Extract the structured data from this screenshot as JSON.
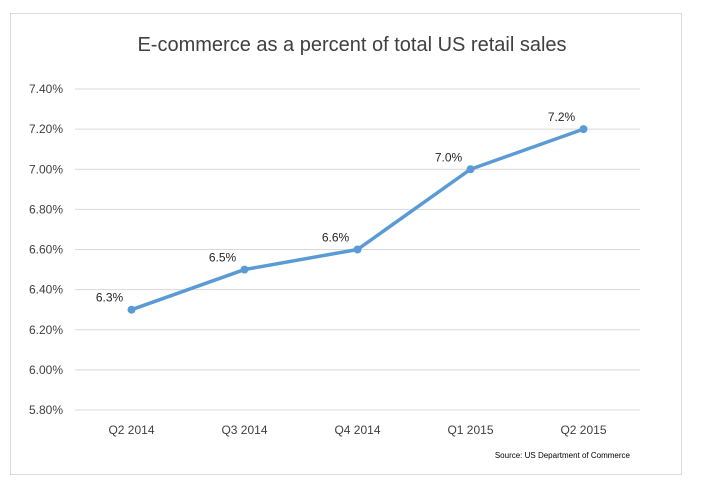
{
  "chart_data": {
    "type": "line",
    "title": "E-commerce as a percent of total US retail sales",
    "categories": [
      "Q2 2014",
      "Q3 2014",
      "Q4 2014",
      "Q1 2015",
      "Q2 2015"
    ],
    "series": [
      {
        "values": [
          6.3,
          6.5,
          6.6,
          7.0,
          7.2
        ],
        "color": "#5b9bd5"
      }
    ],
    "data_labels": [
      "6.3%",
      "6.5%",
      "6.6%",
      "7.0%",
      "7.2%"
    ],
    "y_ticks": [
      "5.80%",
      "6.00%",
      "6.20%",
      "6.40%",
      "6.60%",
      "6.80%",
      "7.00%",
      "7.20%",
      "7.40%"
    ],
    "ylim": [
      5.8,
      7.4
    ],
    "grid": true,
    "source": "Source: US Department of Commerce"
  }
}
